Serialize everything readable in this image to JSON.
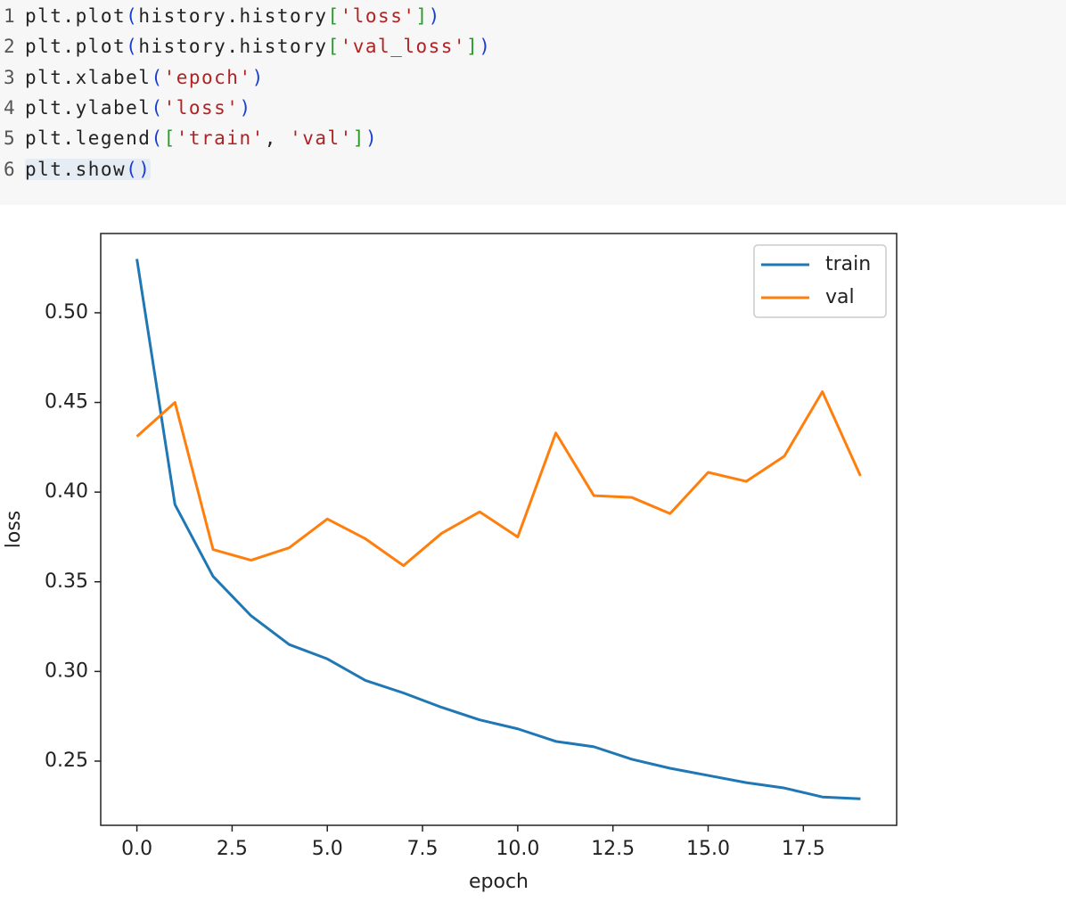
{
  "code": {
    "line_numbers": [
      1,
      2,
      3,
      4,
      5,
      6
    ],
    "lines": [
      [
        {
          "t": "plt.plot",
          "k": "plain"
        },
        {
          "t": "(",
          "k": "paren"
        },
        {
          "t": "history.history",
          "k": "plain"
        },
        {
          "t": "[",
          "k": "bracket"
        },
        {
          "t": "'loss'",
          "k": "string"
        },
        {
          "t": "]",
          "k": "bracket"
        },
        {
          "t": ")",
          "k": "paren"
        }
      ],
      [
        {
          "t": "plt.plot",
          "k": "plain"
        },
        {
          "t": "(",
          "k": "paren"
        },
        {
          "t": "history.history",
          "k": "plain"
        },
        {
          "t": "[",
          "k": "bracket"
        },
        {
          "t": "'val_loss'",
          "k": "string"
        },
        {
          "t": "]",
          "k": "bracket"
        },
        {
          "t": ")",
          "k": "paren"
        }
      ],
      [
        {
          "t": "plt.xlabel",
          "k": "plain"
        },
        {
          "t": "(",
          "k": "paren"
        },
        {
          "t": "'epoch'",
          "k": "string"
        },
        {
          "t": ")",
          "k": "paren"
        }
      ],
      [
        {
          "t": "plt.ylabel",
          "k": "plain"
        },
        {
          "t": "(",
          "k": "paren"
        },
        {
          "t": "'loss'",
          "k": "string"
        },
        {
          "t": ")",
          "k": "paren"
        }
      ],
      [
        {
          "t": "plt.legend",
          "k": "plain"
        },
        {
          "t": "(",
          "k": "paren"
        },
        {
          "t": "[",
          "k": "bracket"
        },
        {
          "t": "'train'",
          "k": "string"
        },
        {
          "t": ", ",
          "k": "plain"
        },
        {
          "t": "'val'",
          "k": "string"
        },
        {
          "t": "]",
          "k": "bracket"
        },
        {
          "t": ")",
          "k": "paren"
        }
      ],
      [
        {
          "t": "plt.show",
          "k": "plain"
        },
        {
          "t": "()",
          "k": "paren"
        }
      ]
    ]
  },
  "chart_data": {
    "type": "line",
    "x": [
      0,
      1,
      2,
      3,
      4,
      5,
      6,
      7,
      8,
      9,
      10,
      11,
      12,
      13,
      14,
      15,
      16,
      17,
      18,
      19
    ],
    "series": [
      {
        "name": "train",
        "color": "#1f77b4",
        "values": [
          0.53,
          0.393,
          0.353,
          0.331,
          0.315,
          0.307,
          0.295,
          0.288,
          0.28,
          0.273,
          0.268,
          0.261,
          0.258,
          0.251,
          0.246,
          0.242,
          0.238,
          0.235,
          0.23,
          0.229
        ]
      },
      {
        "name": "val",
        "color": "#ff7f0e",
        "values": [
          0.431,
          0.45,
          0.368,
          0.362,
          0.369,
          0.385,
          0.374,
          0.359,
          0.377,
          0.389,
          0.375,
          0.433,
          0.398,
          0.397,
          0.388,
          0.411,
          0.406,
          0.42,
          0.456,
          0.409
        ]
      }
    ],
    "x_label": "epoch",
    "y_label": "loss",
    "xlim": [
      -0.95,
      19.95
    ],
    "ylim": [
      0.2142,
      0.5442
    ],
    "xticks": [
      {
        "value": 0,
        "label": "0.0"
      },
      2.5,
      {
        "value": 5,
        "label": "5.0"
      },
      7.5,
      {
        "value": 10,
        "label": "10.0"
      },
      12.5,
      {
        "value": 15,
        "label": "15.0"
      },
      17.5
    ],
    "yticks": [
      0.25,
      {
        "value": 0.3,
        "label": "0.30"
      },
      0.35,
      {
        "value": 0.4,
        "label": "0.40"
      },
      0.45,
      {
        "value": 0.5,
        "label": "0.50"
      }
    ],
    "legend": "upper right",
    "grid": false
  }
}
